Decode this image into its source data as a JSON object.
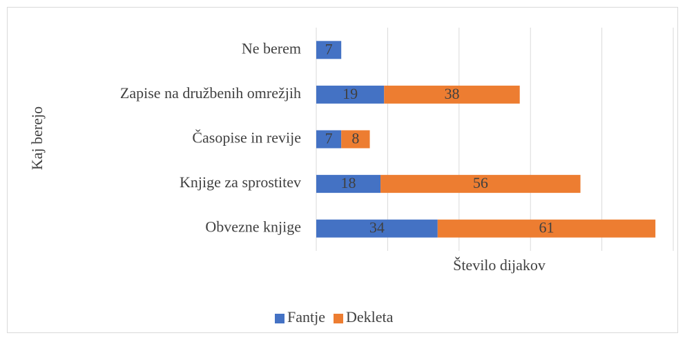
{
  "chart_data": {
    "type": "stacked-bar-horizontal",
    "categories": [
      "Ne berem",
      "Zapise na družbenih omrežjih",
      "Časopise in revije",
      "Knjige za sprostitev",
      "Obvezne knjige"
    ],
    "series": [
      {
        "name": "Fantje",
        "color": "#4472c4",
        "values": [
          7,
          19,
          7,
          18,
          34
        ]
      },
      {
        "name": "Dekleta",
        "color": "#ed7d31",
        "values": [
          null,
          38,
          8,
          56,
          61
        ]
      }
    ],
    "xlim": [
      0,
      100
    ],
    "xticks": [
      0,
      20,
      40,
      60,
      80,
      100
    ],
    "grid": true,
    "x_label": "Število dijakov",
    "y_label": "Kaj berejo",
    "legend": "bottom"
  }
}
